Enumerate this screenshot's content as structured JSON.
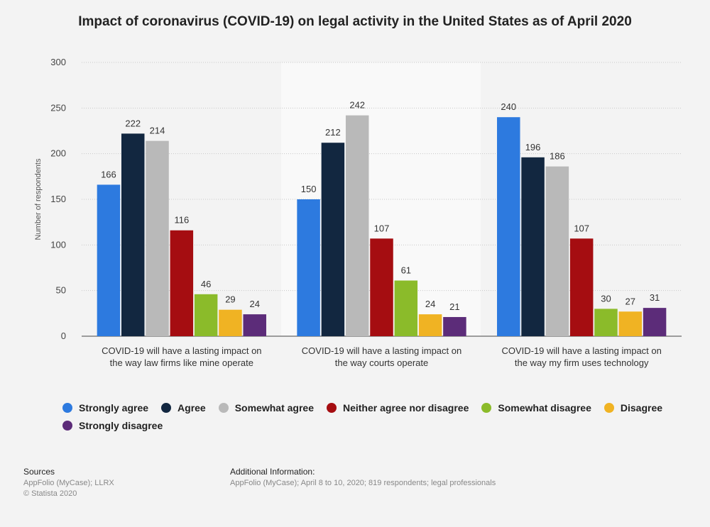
{
  "chart_data": {
    "type": "bar",
    "title": "Impact of coronavirus (COVID-19) on legal activity in the United States as of April 2020",
    "ylabel": "Number of respondents",
    "xlabel": "",
    "ylim": [
      0,
      300
    ],
    "yticks": [
      0,
      50,
      100,
      150,
      200,
      250,
      300
    ],
    "grid": true,
    "legend_position": "bottom",
    "categories": [
      [
        "COVID-19 will have a lasting impact on",
        "the way law firms like mine operate"
      ],
      [
        "COVID-19 will have a lasting impact on",
        "the way courts operate"
      ],
      [
        "COVID-19 will have a lasting impact on",
        "the way my firm uses technology"
      ]
    ],
    "series": [
      {
        "name": "Strongly agree",
        "color": "#2d7adf",
        "values": [
          166,
          150,
          240
        ]
      },
      {
        "name": "Agree",
        "color": "#122740",
        "values": [
          222,
          212,
          196
        ]
      },
      {
        "name": "Somewhat agree",
        "color": "#b9b9b9",
        "values": [
          214,
          242,
          186
        ]
      },
      {
        "name": "Neither agree nor disagree",
        "color": "#a50d11",
        "values": [
          116,
          107,
          107
        ]
      },
      {
        "name": "Somewhat disagree",
        "color": "#8bbb2a",
        "values": [
          46,
          61,
          30
        ]
      },
      {
        "name": "Disagree",
        "color": "#f0b323",
        "values": [
          29,
          24,
          27
        ]
      },
      {
        "name": "Strongly disagree",
        "color": "#5c2c79",
        "values": [
          24,
          21,
          31
        ]
      }
    ]
  },
  "footer": {
    "sources_heading": "Sources",
    "sources_lines": [
      "AppFolio (MyCase); LLRX",
      "© Statista 2020"
    ],
    "info_heading": "Additional Information:",
    "info_lines": [
      "AppFolio (MyCase); April 8 to 10, 2020; 819 respondents; legal professionals"
    ]
  }
}
